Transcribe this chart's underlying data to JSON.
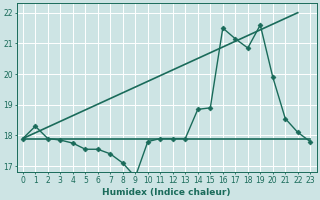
{
  "title": "",
  "xlabel": "Humidex (Indice chaleur)",
  "xlim": [
    -0.5,
    23.5
  ],
  "ylim": [
    16.8,
    22.3
  ],
  "yticks": [
    17,
    18,
    19,
    20,
    21,
    22
  ],
  "xticks": [
    0,
    1,
    2,
    3,
    4,
    5,
    6,
    7,
    8,
    9,
    10,
    11,
    12,
    13,
    14,
    15,
    16,
    17,
    18,
    19,
    20,
    21,
    22,
    23
  ],
  "bg_color": "#cde4e4",
  "grid_color": "#ffffff",
  "line_color": "#1a6b5a",
  "series": [
    {
      "x": [
        0,
        1,
        2,
        3,
        4,
        5,
        6,
        7,
        8,
        9,
        10,
        11,
        12,
        13,
        14,
        15,
        16,
        17,
        18,
        19,
        20,
        21,
        22,
        23
      ],
      "y": [
        17.9,
        18.3,
        17.9,
        17.85,
        17.75,
        17.55,
        17.55,
        17.4,
        17.1,
        16.65,
        17.8,
        17.9,
        17.9,
        17.9,
        18.85,
        18.9,
        21.5,
        21.15,
        20.85,
        21.6,
        19.9,
        18.55,
        18.1,
        17.8
      ],
      "marker": "D",
      "markersize": 2.5,
      "linewidth": 1.0
    },
    {
      "x": [
        0,
        23
      ],
      "y": [
        17.9,
        17.9
      ],
      "marker": null,
      "markersize": 0,
      "linewidth": 1.2
    },
    {
      "x": [
        0,
        22
      ],
      "y": [
        17.9,
        22.0
      ],
      "marker": null,
      "markersize": 0,
      "linewidth": 1.2
    }
  ]
}
